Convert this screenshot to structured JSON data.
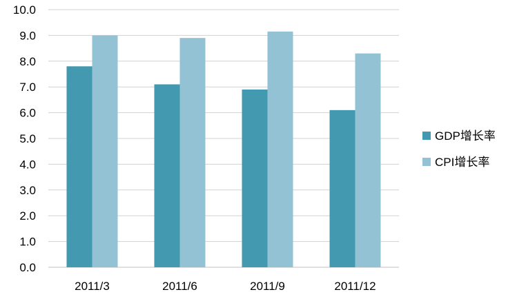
{
  "chart_data": {
    "type": "bar",
    "categories": [
      "2011/3",
      "2011/6",
      "2011/9",
      "2011/12"
    ],
    "series": [
      {
        "name": "GDP增长率",
        "values": [
          7.8,
          7.1,
          6.9,
          6.1
        ],
        "color": "#4399af"
      },
      {
        "name": "CPI增长率",
        "values": [
          9.0,
          8.9,
          9.15,
          8.3
        ],
        "color": "#93c2d4"
      }
    ],
    "title": "",
    "xlabel": "",
    "ylabel": "",
    "ylim": [
      0,
      10
    ],
    "yticks": [
      "0.0",
      "1.0",
      "2.0",
      "3.0",
      "4.0",
      "5.0",
      "6.0",
      "7.0",
      "8.0",
      "9.0",
      "10.0"
    ],
    "grid": true,
    "legend_position": "right"
  }
}
